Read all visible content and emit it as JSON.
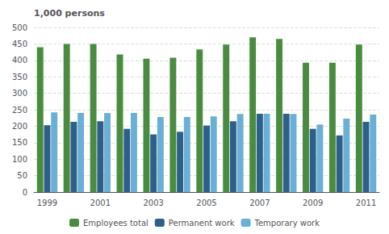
{
  "chart_data": {
    "type": "bar",
    "ylabel": "1,000 persons",
    "categories": [
      "1999",
      null,
      "2001",
      null,
      "2003",
      null,
      "2005",
      null,
      "2007",
      null,
      "2009",
      null,
      "2011"
    ],
    "series": [
      {
        "name": "Employees total",
        "color": "#4a8c3f",
        "values": [
          440,
          450,
          450,
          418,
          405,
          408,
          433,
          448,
          470,
          465,
          393,
          393,
          448
        ]
      },
      {
        "name": "Permanent work",
        "color": "#2e5f8a",
        "values": [
          203,
          213,
          215,
          192,
          175,
          183,
          202,
          215,
          238,
          238,
          192,
          172,
          213
        ]
      },
      {
        "name": "Temporary work",
        "color": "#6aafd6",
        "values": [
          242,
          240,
          240,
          240,
          228,
          228,
          230,
          237,
          238,
          237,
          205,
          223,
          235
        ]
      }
    ],
    "ylim": [
      0,
      500
    ],
    "yticks": [
      0,
      50,
      100,
      150,
      200,
      250,
      300,
      350,
      400,
      450,
      500
    ],
    "grid": true,
    "legend": "bottom"
  }
}
